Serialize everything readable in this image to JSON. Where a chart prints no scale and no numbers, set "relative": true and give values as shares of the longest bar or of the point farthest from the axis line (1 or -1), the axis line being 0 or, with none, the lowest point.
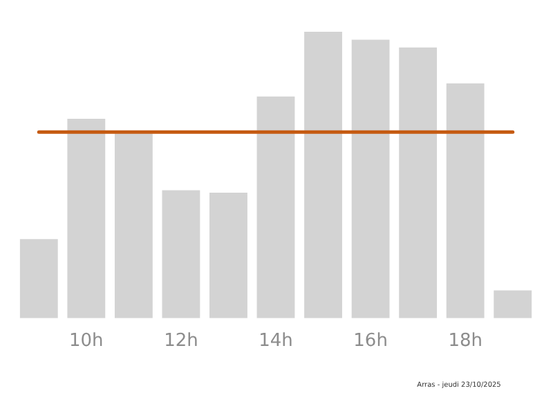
{
  "chart_data": {
    "type": "bar",
    "relative": true,
    "categories": [
      null,
      "10h",
      null,
      "12h",
      null,
      "14h",
      null,
      "16h",
      null,
      "18h",
      null
    ],
    "values": [
      0.276,
      0.696,
      0.645,
      0.447,
      0.438,
      0.774,
      1,
      0.972,
      0.945,
      0.82,
      0.097
    ],
    "color": "#d3d3d3",
    "ref_lines": [
      {
        "axis": "y",
        "value": 0.65,
        "color": "#c55a11"
      }
    ],
    "annotations": [
      "Arras - jeudi 23/10/2025"
    ],
    "grid": false,
    "legend": false
  }
}
